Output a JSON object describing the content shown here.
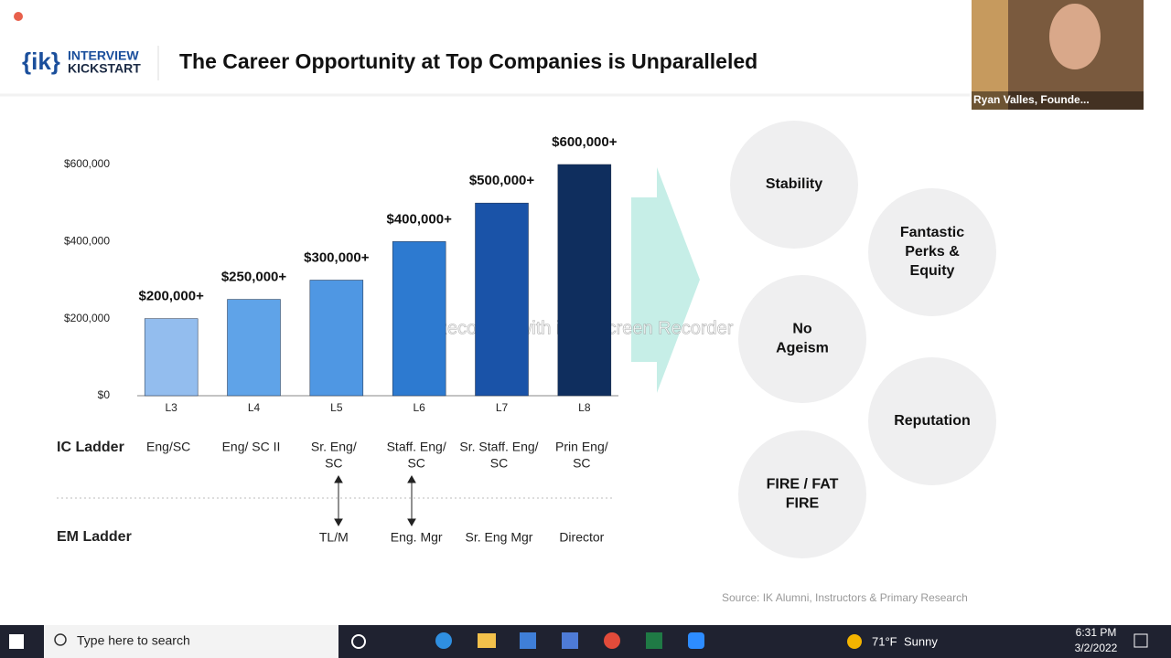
{
  "header": {
    "logo_mark": "{ik}",
    "logo_line1": "INTERVIEW",
    "logo_line2": "KICKSTART",
    "title": "The Career Opportunity at Top Companies is Unparalleled"
  },
  "chart_data": {
    "type": "bar",
    "categories": [
      "L3",
      "L4",
      "L5",
      "L6",
      "L7",
      "L8"
    ],
    "values": [
      200000,
      250000,
      300000,
      400000,
      500000,
      600000
    ],
    "value_labels": [
      "$200,000+",
      "$250,000+",
      "$300,000+",
      "$400,000+",
      "$500,000+",
      "$600,000+"
    ],
    "colors": [
      "#93bdee",
      "#5fa3e8",
      "#4f97e3",
      "#2d7ad0",
      "#1a53a8",
      "#0f2e5e"
    ],
    "ylim": [
      0,
      600000
    ],
    "yticks": [
      {
        "value": 0,
        "label": "$0"
      },
      {
        "value": 200000,
        "label": "$200,000"
      },
      {
        "value": 400000,
        "label": "$400,000"
      },
      {
        "value": 600000,
        "label": "$600,000"
      }
    ]
  },
  "ladders": {
    "ic_label": "IC Ladder",
    "ic": [
      [
        "Eng/SC"
      ],
      [
        "Eng/ SC II"
      ],
      [
        "Sr. Eng/",
        "SC"
      ],
      [
        "Staff. Eng/",
        "SC"
      ],
      [
        "Sr. Staff. Eng/",
        "SC"
      ],
      [
        "Prin Eng/",
        "SC"
      ]
    ],
    "em_label": "EM Ladder",
    "em": [
      null,
      null,
      "TL/M",
      "Eng. Mgr",
      "Sr. Eng Mgr",
      "Director"
    ]
  },
  "benefits": [
    [
      "Stability"
    ],
    [
      "Fantastic",
      "Perks &",
      "Equity"
    ],
    [
      "No",
      "Ageism"
    ],
    [
      "Reputation"
    ],
    [
      "FIRE / FAT",
      "FIRE"
    ]
  ],
  "source": "Source: IK Alumni, Instructors & Primary Research",
  "watermark": "Recorded with iTop Screen Recorder",
  "video": {
    "name": "Ryan Valles, Founde..."
  },
  "taskbar": {
    "search": "Type here to search",
    "temp": "71°F",
    "weather": "Sunny",
    "time": "6:31 PM",
    "date": "3/2/2022"
  }
}
